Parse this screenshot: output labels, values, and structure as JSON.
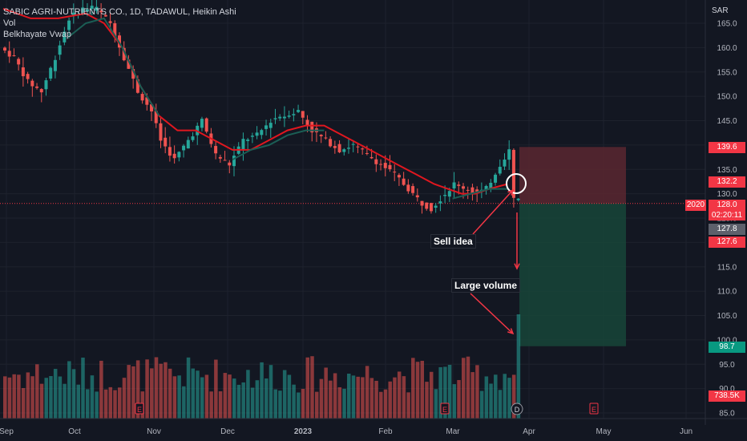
{
  "legend": {
    "symbol": "SABIC AGRI-NUTRIENTS CO., 1D, TADAWUL, Heikin Ashi",
    "vol": "Vol",
    "vwap": "Belkhayate Vwap"
  },
  "currency": "SAR",
  "annotations": {
    "sell": "Sell idea",
    "volume": "Large volume"
  },
  "tags": {
    "p1": "139.6",
    "p2": "132.2",
    "p3_top": "128.0",
    "p3_bottom": "02:20:11",
    "p4": "127.8",
    "p5": "127.6",
    "p6": "98.7",
    "vol": "738.5K",
    "sym2020": "2020"
  },
  "markers": {
    "earnings": "E",
    "dividend": "D"
  },
  "colors": {
    "up": "#26a69a",
    "down": "#ef5350",
    "ema": "#e0171f",
    "vwap": "#1b5e55",
    "bg": "#131722",
    "stopZone": "#5a2730",
    "targetZone": "#174538"
  },
  "chart_data": {
    "type": "candlestick",
    "ylim": [
      84,
      168
    ],
    "yticks": [
      85.0,
      90.0,
      95.0,
      100.0,
      105.0,
      110.0,
      115.0,
      120.0,
      125.0,
      130.0,
      135.0,
      140.0,
      145.0,
      150.0,
      155.0,
      160.0,
      165.0
    ],
    "xticks": [
      "Sep",
      "Oct",
      "Nov",
      "Dec",
      "2023",
      "Feb",
      "Mar",
      "Apr",
      "May",
      "Jun"
    ],
    "current_price": 128.0,
    "trade": {
      "entry": 128.0,
      "stop": 139.6,
      "target": 98.7
    },
    "close_trend": [
      [
        0,
        160
      ],
      [
        3,
        158
      ],
      [
        6,
        153
      ],
      [
        9,
        151
      ],
      [
        12,
        158
      ],
      [
        15,
        166
      ],
      [
        18,
        168
      ],
      [
        21,
        168
      ],
      [
        24,
        165
      ],
      [
        27,
        158
      ],
      [
        30,
        151
      ],
      [
        33,
        147
      ],
      [
        35,
        141
      ],
      [
        38,
        137
      ],
      [
        41,
        141
      ],
      [
        44,
        145
      ],
      [
        47,
        138
      ],
      [
        50,
        136
      ],
      [
        53,
        141
      ],
      [
        56,
        142
      ],
      [
        59,
        145
      ],
      [
        62,
        146
      ],
      [
        65,
        147
      ],
      [
        68,
        143
      ],
      [
        71,
        141
      ],
      [
        74,
        139
      ],
      [
        77,
        140
      ],
      [
        80,
        138
      ],
      [
        83,
        136
      ],
      [
        86,
        134
      ],
      [
        89,
        131
      ],
      [
        92,
        128
      ],
      [
        94,
        127
      ],
      [
        96,
        129
      ],
      [
        99,
        132
      ],
      [
        102,
        131
      ],
      [
        104,
        130
      ],
      [
        106,
        131
      ],
      [
        109,
        136
      ],
      [
        111,
        139
      ],
      [
        112,
        129
      ]
    ],
    "ema": [
      [
        0,
        168
      ],
      [
        6,
        166
      ],
      [
        12,
        166
      ],
      [
        18,
        167
      ],
      [
        22,
        165
      ],
      [
        26,
        160
      ],
      [
        30,
        152
      ],
      [
        34,
        146
      ],
      [
        38,
        143
      ],
      [
        42,
        143
      ],
      [
        46,
        141
      ],
      [
        50,
        139
      ],
      [
        54,
        139
      ],
      [
        58,
        141
      ],
      [
        62,
        143
      ],
      [
        66,
        144
      ],
      [
        70,
        144
      ],
      [
        74,
        142
      ],
      [
        78,
        140
      ],
      [
        82,
        138
      ],
      [
        86,
        136
      ],
      [
        90,
        134
      ],
      [
        94,
        132
      ],
      [
        97,
        131
      ],
      [
        100,
        130
      ],
      [
        103,
        130
      ],
      [
        106,
        131
      ],
      [
        110,
        132
      ]
    ],
    "vwap": [
      [
        14,
        162
      ],
      [
        18,
        165
      ],
      [
        22,
        166
      ],
      [
        26,
        160
      ],
      [
        30,
        152
      ],
      [
        34,
        146
      ],
      [
        50,
        137
      ],
      [
        54,
        139
      ],
      [
        58,
        140
      ],
      [
        62,
        142
      ],
      [
        66,
        143
      ],
      [
        70,
        143
      ],
      [
        98,
        129
      ],
      [
        102,
        130
      ],
      [
        106,
        131
      ],
      [
        110,
        131
      ]
    ],
    "volume_max_k": 900
  }
}
